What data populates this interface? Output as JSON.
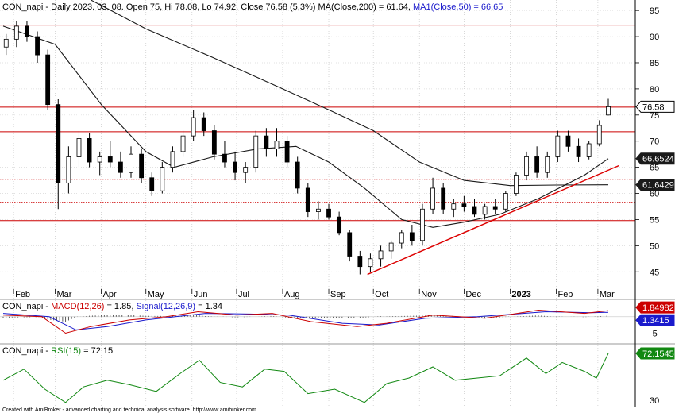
{
  "main_panel": {
    "header_text": "CON_napi - Daily 2023. 03. 08. Open 75, Hi 78.08, Lo 74.92, Close 76.58 (5.3%) MA(Close,200) = 61.64, MA1(Close,50) = 66.65",
    "header_prefix": "CON_napi - Daily 2023. 03. 08. Open 75, Hi 78.08, Lo 74.92, Close 76.58 (5.3%) MA(Close,200) = 61.64, ",
    "header_ma50": "MA1(Close,50) = 66.65",
    "y_ticks": [
      45,
      50,
      55,
      60,
      65,
      70,
      75,
      80,
      85,
      90,
      95
    ],
    "ylim": [
      42,
      97
    ],
    "badges": [
      {
        "label": "76.58",
        "value": 76.58,
        "bg": "#ffffff",
        "fg": "#000000",
        "border": "#000000"
      },
      {
        "label": "66.6524",
        "value": 66.6524,
        "bg": "#1a1a1a",
        "fg": "#ffffff"
      },
      {
        "label": "61.6429",
        "value": 61.6429,
        "bg": "#1a1a1a",
        "fg": "#ffffff"
      }
    ],
    "x_labels": [
      {
        "text": "Feb",
        "date": "2022-02-01"
      },
      {
        "text": "Mar",
        "date": "2022-03-01"
      },
      {
        "text": "Apr",
        "date": "2022-04-01"
      },
      {
        "text": "May",
        "date": "2022-05-01"
      },
      {
        "text": "Jun",
        "date": "2022-06-01"
      },
      {
        "text": "Jul",
        "date": "2022-07-01"
      },
      {
        "text": "Aug",
        "date": "2022-08-01"
      },
      {
        "text": "Sep",
        "date": "2022-09-01"
      },
      {
        "text": "Oct",
        "date": "2022-10-01"
      },
      {
        "text": "Nov",
        "date": "2022-11-01"
      },
      {
        "text": "Dec",
        "date": "2022-12-01"
      },
      {
        "text": "2023",
        "date": "2023-01-01",
        "bold": true
      },
      {
        "text": "Feb",
        "date": "2023-02-01"
      },
      {
        "text": "Mar",
        "date": "2023-03-01"
      }
    ]
  },
  "macd_panel": {
    "prefix": "CON_napi - ",
    "macd_label": "MACD(12,26)",
    "mid": " = 1.85, ",
    "signal_label": "Signal(12,26,9)",
    "suffix": " = 1.34",
    "y_ticks": [
      -5
    ],
    "ylim": [
      -8,
      5
    ],
    "badges": [
      {
        "label": "1.84982",
        "value": 1.85,
        "bg": "#cc0000",
        "fg": "#ffffff"
      },
      {
        "label": "1.3415",
        "value": 1.34,
        "bg": "#1a1acc",
        "fg": "#ffffff"
      }
    ]
  },
  "rsi_panel": {
    "prefix": "CON_napi - ",
    "rsi_label": "RSI(15)",
    "suffix": " = 72.15",
    "y_ticks": [
      30
    ],
    "ylim": [
      25,
      80
    ],
    "badge": {
      "label": "72.1545",
      "value": 72.15,
      "bg": "#118811",
      "fg": "#ffffff"
    }
  },
  "footer_text": "Created with AmiBroker - advanced charting and technical analysis software. http://www.amibroker.com",
  "chart_data": {
    "type": "candlestick",
    "title": "CON_napi - Daily",
    "x_range": [
      "2022-01-25",
      "2023-03-08"
    ],
    "last_bar": {
      "date": "2023-03-08",
      "open": 75,
      "high": 78.08,
      "low": 74.92,
      "close": 76.58,
      "change_pct": 5.3
    },
    "ohlc_weekly_approx": [
      {
        "date": "2022-01-27",
        "open": 88.0,
        "high": 90.5,
        "low": 86.5,
        "close": 89.5
      },
      {
        "date": "2022-02-03",
        "open": 89.5,
        "high": 93.0,
        "low": 88.0,
        "close": 92.0
      },
      {
        "date": "2022-02-10",
        "open": 92.0,
        "high": 93.0,
        "low": 89.0,
        "close": 90.0
      },
      {
        "date": "2022-02-17",
        "open": 90.0,
        "high": 91.0,
        "low": 85.0,
        "close": 86.5
      },
      {
        "date": "2022-02-24",
        "open": 86.5,
        "high": 87.5,
        "low": 76.0,
        "close": 77.0
      },
      {
        "date": "2022-03-03",
        "open": 77.0,
        "high": 78.0,
        "low": 57.0,
        "close": 62.0
      },
      {
        "date": "2022-03-10",
        "open": 62.0,
        "high": 69.0,
        "low": 60.0,
        "close": 67.0
      },
      {
        "date": "2022-03-17",
        "open": 67.0,
        "high": 72.0,
        "low": 65.0,
        "close": 70.5
      },
      {
        "date": "2022-03-24",
        "open": 70.5,
        "high": 71.5,
        "low": 65.0,
        "close": 66.0
      },
      {
        "date": "2022-03-31",
        "open": 66.0,
        "high": 68.0,
        "low": 63.5,
        "close": 67.0
      },
      {
        "date": "2022-04-07",
        "open": 67.0,
        "high": 70.0,
        "low": 65.0,
        "close": 66.0
      },
      {
        "date": "2022-04-14",
        "open": 66.0,
        "high": 68.0,
        "low": 63.0,
        "close": 64.0
      },
      {
        "date": "2022-04-21",
        "open": 64.0,
        "high": 69.0,
        "low": 63.0,
        "close": 67.5
      },
      {
        "date": "2022-04-28",
        "open": 67.5,
        "high": 68.5,
        "low": 62.0,
        "close": 63.0
      },
      {
        "date": "2022-05-05",
        "open": 63.0,
        "high": 64.0,
        "low": 59.5,
        "close": 60.5
      },
      {
        "date": "2022-05-12",
        "open": 60.5,
        "high": 66.0,
        "low": 60.0,
        "close": 65.0
      },
      {
        "date": "2022-05-19",
        "open": 65.0,
        "high": 69.0,
        "low": 64.0,
        "close": 68.0
      },
      {
        "date": "2022-05-26",
        "open": 68.0,
        "high": 72.0,
        "low": 67.0,
        "close": 71.0
      },
      {
        "date": "2022-06-02",
        "open": 71.0,
        "high": 76.0,
        "low": 70.0,
        "close": 74.5
      },
      {
        "date": "2022-06-09",
        "open": 74.5,
        "high": 75.5,
        "low": 71.0,
        "close": 72.0
      },
      {
        "date": "2022-06-16",
        "open": 72.0,
        "high": 73.0,
        "low": 66.5,
        "close": 67.5
      },
      {
        "date": "2022-06-23",
        "open": 67.5,
        "high": 70.0,
        "low": 65.0,
        "close": 66.0
      },
      {
        "date": "2022-06-30",
        "open": 66.0,
        "high": 68.0,
        "low": 62.5,
        "close": 64.0
      },
      {
        "date": "2022-07-07",
        "open": 64.0,
        "high": 66.0,
        "low": 62.0,
        "close": 65.0
      },
      {
        "date": "2022-07-14",
        "open": 65.0,
        "high": 72.0,
        "low": 64.0,
        "close": 71.0
      },
      {
        "date": "2022-07-21",
        "open": 71.0,
        "high": 72.5,
        "low": 67.0,
        "close": 68.5
      },
      {
        "date": "2022-07-28",
        "open": 68.5,
        "high": 72.5,
        "low": 67.0,
        "close": 70.0
      },
      {
        "date": "2022-08-04",
        "open": 70.0,
        "high": 71.0,
        "low": 65.0,
        "close": 66.0
      },
      {
        "date": "2022-08-11",
        "open": 66.0,
        "high": 67.0,
        "low": 60.0,
        "close": 61.0
      },
      {
        "date": "2022-08-18",
        "open": 61.0,
        "high": 62.0,
        "low": 55.5,
        "close": 56.5
      },
      {
        "date": "2022-08-25",
        "open": 56.5,
        "high": 58.5,
        "low": 55.0,
        "close": 57.0
      },
      {
        "date": "2022-09-01",
        "open": 57.0,
        "high": 58.0,
        "low": 55.0,
        "close": 55.5
      },
      {
        "date": "2022-09-08",
        "open": 55.5,
        "high": 56.5,
        "low": 52.0,
        "close": 52.5
      },
      {
        "date": "2022-09-15",
        "open": 52.5,
        "high": 53.0,
        "low": 47.0,
        "close": 48.0
      },
      {
        "date": "2022-09-22",
        "open": 48.0,
        "high": 49.0,
        "low": 44.5,
        "close": 46.0
      },
      {
        "date": "2022-09-29",
        "open": 46.0,
        "high": 48.5,
        "low": 45.0,
        "close": 47.5
      },
      {
        "date": "2022-10-06",
        "open": 47.5,
        "high": 50.0,
        "low": 46.0,
        "close": 49.0
      },
      {
        "date": "2022-10-13",
        "open": 49.0,
        "high": 51.0,
        "low": 47.5,
        "close": 50.5
      },
      {
        "date": "2022-10-20",
        "open": 50.5,
        "high": 53.0,
        "low": 49.5,
        "close": 52.5
      },
      {
        "date": "2022-10-27",
        "open": 52.5,
        "high": 54.0,
        "low": 50.0,
        "close": 51.0
      },
      {
        "date": "2022-11-03",
        "open": 51.0,
        "high": 58.0,
        "low": 50.0,
        "close": 57.0
      },
      {
        "date": "2022-11-10",
        "open": 57.0,
        "high": 63.0,
        "low": 56.0,
        "close": 61.0
      },
      {
        "date": "2022-11-17",
        "open": 61.0,
        "high": 62.0,
        "low": 56.0,
        "close": 57.0
      },
      {
        "date": "2022-11-24",
        "open": 57.0,
        "high": 59.0,
        "low": 55.5,
        "close": 58.0
      },
      {
        "date": "2022-12-01",
        "open": 58.0,
        "high": 59.5,
        "low": 56.5,
        "close": 57.5
      },
      {
        "date": "2022-12-08",
        "open": 57.5,
        "high": 59.0,
        "low": 55.5,
        "close": 56.0
      },
      {
        "date": "2022-12-15",
        "open": 56.0,
        "high": 58.0,
        "low": 55.0,
        "close": 57.5
      },
      {
        "date": "2022-12-22",
        "open": 57.5,
        "high": 59.0,
        "low": 56.0,
        "close": 57.0
      },
      {
        "date": "2022-12-29",
        "open": 57.0,
        "high": 60.5,
        "low": 56.5,
        "close": 60.0
      },
      {
        "date": "2023-01-05",
        "open": 60.0,
        "high": 64.0,
        "low": 59.5,
        "close": 63.5
      },
      {
        "date": "2023-01-12",
        "open": 63.5,
        "high": 68.0,
        "low": 62.5,
        "close": 67.0
      },
      {
        "date": "2023-01-19",
        "open": 67.0,
        "high": 69.0,
        "low": 63.0,
        "close": 64.0
      },
      {
        "date": "2023-01-26",
        "open": 64.0,
        "high": 68.0,
        "low": 63.0,
        "close": 67.0
      },
      {
        "date": "2023-02-02",
        "open": 67.0,
        "high": 72.0,
        "low": 66.0,
        "close": 71.0
      },
      {
        "date": "2023-02-09",
        "open": 71.0,
        "high": 72.0,
        "low": 68.0,
        "close": 69.0
      },
      {
        "date": "2023-02-16",
        "open": 69.0,
        "high": 70.5,
        "low": 66.0,
        "close": 67.0
      },
      {
        "date": "2023-02-23",
        "open": 67.0,
        "high": 70.0,
        "low": 66.5,
        "close": 69.5
      },
      {
        "date": "2023-03-02",
        "open": 69.5,
        "high": 74.0,
        "low": 69.0,
        "close": 73.0
      },
      {
        "date": "2023-03-08",
        "open": 75.0,
        "high": 78.08,
        "low": 74.92,
        "close": 76.58
      }
    ],
    "ma50": [
      {
        "date": "2022-01-25",
        "value": 92.0
      },
      {
        "date": "2022-03-01",
        "value": 88.5
      },
      {
        "date": "2022-04-01",
        "value": 77.0
      },
      {
        "date": "2022-05-01",
        "value": 68.0
      },
      {
        "date": "2022-05-20",
        "value": 65.0
      },
      {
        "date": "2022-06-15",
        "value": 67.0
      },
      {
        "date": "2022-07-15",
        "value": 68.5
      },
      {
        "date": "2022-08-10",
        "value": 69.0
      },
      {
        "date": "2022-09-01",
        "value": 66.0
      },
      {
        "date": "2022-09-25",
        "value": 61.0
      },
      {
        "date": "2022-10-20",
        "value": 55.0
      },
      {
        "date": "2022-11-10",
        "value": 53.5
      },
      {
        "date": "2022-12-01",
        "value": 54.5
      },
      {
        "date": "2022-12-25",
        "value": 56.0
      },
      {
        "date": "2023-01-20",
        "value": 59.0
      },
      {
        "date": "2023-02-20",
        "value": 63.5
      },
      {
        "date": "2023-03-08",
        "value": 66.65
      }
    ],
    "ma200": [
      {
        "date": "2022-03-25",
        "value": 97.0
      },
      {
        "date": "2022-05-01",
        "value": 91.5
      },
      {
        "date": "2022-06-15",
        "value": 86.0
      },
      {
        "date": "2022-08-01",
        "value": 80.0
      },
      {
        "date": "2022-09-01",
        "value": 76.0
      },
      {
        "date": "2022-10-01",
        "value": 72.0
      },
      {
        "date": "2022-11-01",
        "value": 66.0
      },
      {
        "date": "2022-12-01",
        "value": 62.5
      },
      {
        "date": "2023-01-01",
        "value": 61.5
      },
      {
        "date": "2023-02-01",
        "value": 61.6
      },
      {
        "date": "2023-03-08",
        "value": 61.64
      }
    ],
    "horizontal_lines": [
      {
        "value": 92.2,
        "style": "solid",
        "color": "#cc0000"
      },
      {
        "value": 76.5,
        "style": "solid",
        "color": "#cc0000"
      },
      {
        "value": 71.8,
        "style": "solid",
        "color": "#cc0000"
      },
      {
        "value": 62.7,
        "style": "dotted",
        "color": "#cc0000"
      },
      {
        "value": 58.3,
        "style": "dotted",
        "color": "#cc0000"
      },
      {
        "value": 54.8,
        "style": "solid",
        "color": "#cc0000"
      }
    ],
    "trendline": {
      "from": {
        "date": "2022-09-27",
        "value": 44.5
      },
      "to": {
        "date": "2023-03-15",
        "value": 65.3
      },
      "color": "#dd0000"
    },
    "macd": {
      "macd_value": 1.85,
      "signal_value": 1.34,
      "macd_line": [
        {
          "date": "2022-01-25",
          "value": 0.5
        },
        {
          "date": "2022-02-20",
          "value": 0.0
        },
        {
          "date": "2022-03-08",
          "value": -5.0
        },
        {
          "date": "2022-03-25",
          "value": -3.0
        },
        {
          "date": "2022-04-20",
          "value": -1.0
        },
        {
          "date": "2022-05-15",
          "value": 0.0
        },
        {
          "date": "2022-06-05",
          "value": 1.5
        },
        {
          "date": "2022-07-01",
          "value": 0.5
        },
        {
          "date": "2022-07-25",
          "value": 1.0
        },
        {
          "date": "2022-08-20",
          "value": -1.5
        },
        {
          "date": "2022-09-20",
          "value": -3.0
        },
        {
          "date": "2022-10-10",
          "value": -2.0
        },
        {
          "date": "2022-11-10",
          "value": 0.5
        },
        {
          "date": "2022-12-15",
          "value": -0.5
        },
        {
          "date": "2023-01-20",
          "value": 2.0
        },
        {
          "date": "2023-02-20",
          "value": 1.0
        },
        {
          "date": "2023-03-08",
          "value": 1.85
        }
      ],
      "signal_line": [
        {
          "date": "2022-01-25",
          "value": 1.0
        },
        {
          "date": "2022-02-25",
          "value": 0.0
        },
        {
          "date": "2022-03-15",
          "value": -4.0
        },
        {
          "date": "2022-04-05",
          "value": -3.0
        },
        {
          "date": "2022-05-01",
          "value": -1.0
        },
        {
          "date": "2022-06-10",
          "value": 1.0
        },
        {
          "date": "2022-07-10",
          "value": 0.8
        },
        {
          "date": "2022-08-05",
          "value": 0.5
        },
        {
          "date": "2022-09-10",
          "value": -2.0
        },
        {
          "date": "2022-10-05",
          "value": -2.5
        },
        {
          "date": "2022-11-05",
          "value": -0.5
        },
        {
          "date": "2022-12-10",
          "value": 0.0
        },
        {
          "date": "2023-01-25",
          "value": 1.5
        },
        {
          "date": "2023-02-25",
          "value": 1.2
        },
        {
          "date": "2023-03-08",
          "value": 1.34
        }
      ]
    },
    "rsi": {
      "value": 72.15,
      "line": [
        {
          "date": "2022-01-25",
          "value": 48
        },
        {
          "date": "2022-02-08",
          "value": 58
        },
        {
          "date": "2022-02-22",
          "value": 40
        },
        {
          "date": "2022-03-08",
          "value": 28
        },
        {
          "date": "2022-03-20",
          "value": 42
        },
        {
          "date": "2022-04-05",
          "value": 48
        },
        {
          "date": "2022-04-20",
          "value": 44
        },
        {
          "date": "2022-05-08",
          "value": 38
        },
        {
          "date": "2022-05-25",
          "value": 55
        },
        {
          "date": "2022-06-06",
          "value": 66
        },
        {
          "date": "2022-06-20",
          "value": 46
        },
        {
          "date": "2022-07-05",
          "value": 42
        },
        {
          "date": "2022-07-20",
          "value": 58
        },
        {
          "date": "2022-08-02",
          "value": 56
        },
        {
          "date": "2022-08-18",
          "value": 36
        },
        {
          "date": "2022-09-05",
          "value": 40
        },
        {
          "date": "2022-09-25",
          "value": 28
        },
        {
          "date": "2022-10-10",
          "value": 45
        },
        {
          "date": "2022-10-25",
          "value": 50
        },
        {
          "date": "2022-11-10",
          "value": 60
        },
        {
          "date": "2022-11-25",
          "value": 48
        },
        {
          "date": "2022-12-10",
          "value": 50
        },
        {
          "date": "2022-12-25",
          "value": 52
        },
        {
          "date": "2023-01-12",
          "value": 68
        },
        {
          "date": "2023-01-25",
          "value": 54
        },
        {
          "date": "2023-02-05",
          "value": 64
        },
        {
          "date": "2023-02-20",
          "value": 56
        },
        {
          "date": "2023-02-28",
          "value": 50
        },
        {
          "date": "2023-03-08",
          "value": 72.15
        }
      ]
    }
  }
}
